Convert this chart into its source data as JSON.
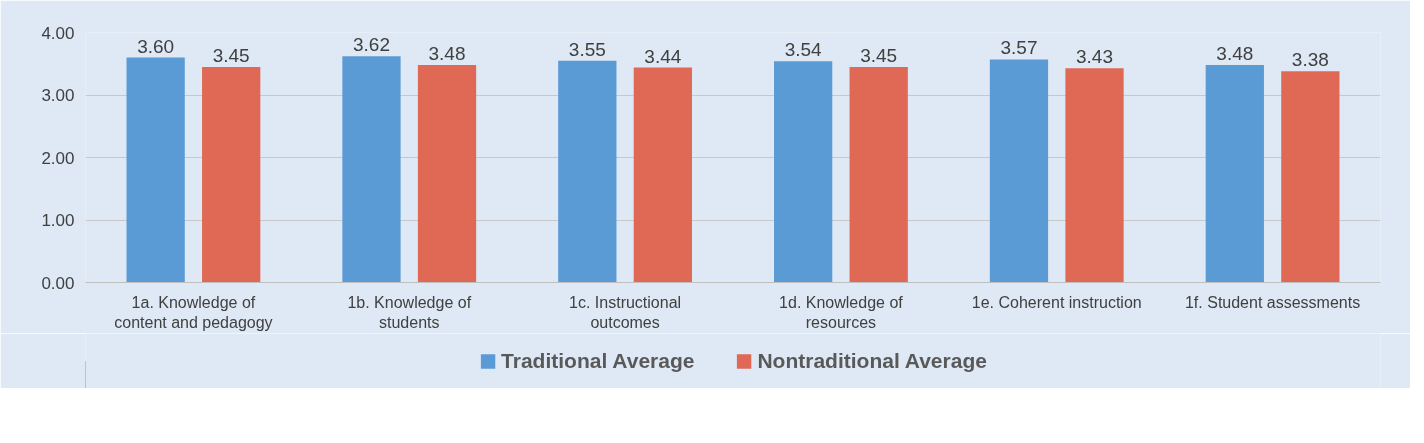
{
  "chart_data": {
    "type": "bar",
    "categories": [
      "1a. Knowledge of\ncontent and pedagogy",
      "1b. Knowledge of\nstudents",
      "1c. Instructional\noutcomes",
      "1d. Knowledge of\nresources",
      "1e. Coherent instruction",
      "1f. Student assessments"
    ],
    "series": [
      {
        "name": "Traditional Average",
        "color": "#5b9bd5",
        "values": [
          3.6,
          3.62,
          3.55,
          3.54,
          3.57,
          3.48
        ],
        "value_labels": [
          "3.60",
          "3.62",
          "3.55",
          "3.54",
          "3.57",
          "3.48"
        ]
      },
      {
        "name": "Nontraditional Average",
        "color": "#e06956",
        "values": [
          3.45,
          3.48,
          3.44,
          3.45,
          3.43,
          3.38
        ],
        "value_labels": [
          "3.45",
          "3.48",
          "3.44",
          "3.45",
          "3.43",
          "3.38"
        ]
      }
    ],
    "ylim": [
      0,
      4
    ],
    "yticks": [
      {
        "value": 0,
        "label": "0.00"
      },
      {
        "value": 1,
        "label": "1.00"
      },
      {
        "value": 2,
        "label": "2.00"
      },
      {
        "value": 3,
        "label": "3.00"
      },
      {
        "value": 4,
        "label": "4.00"
      }
    ],
    "grid": "y",
    "legend": "bottom"
  }
}
